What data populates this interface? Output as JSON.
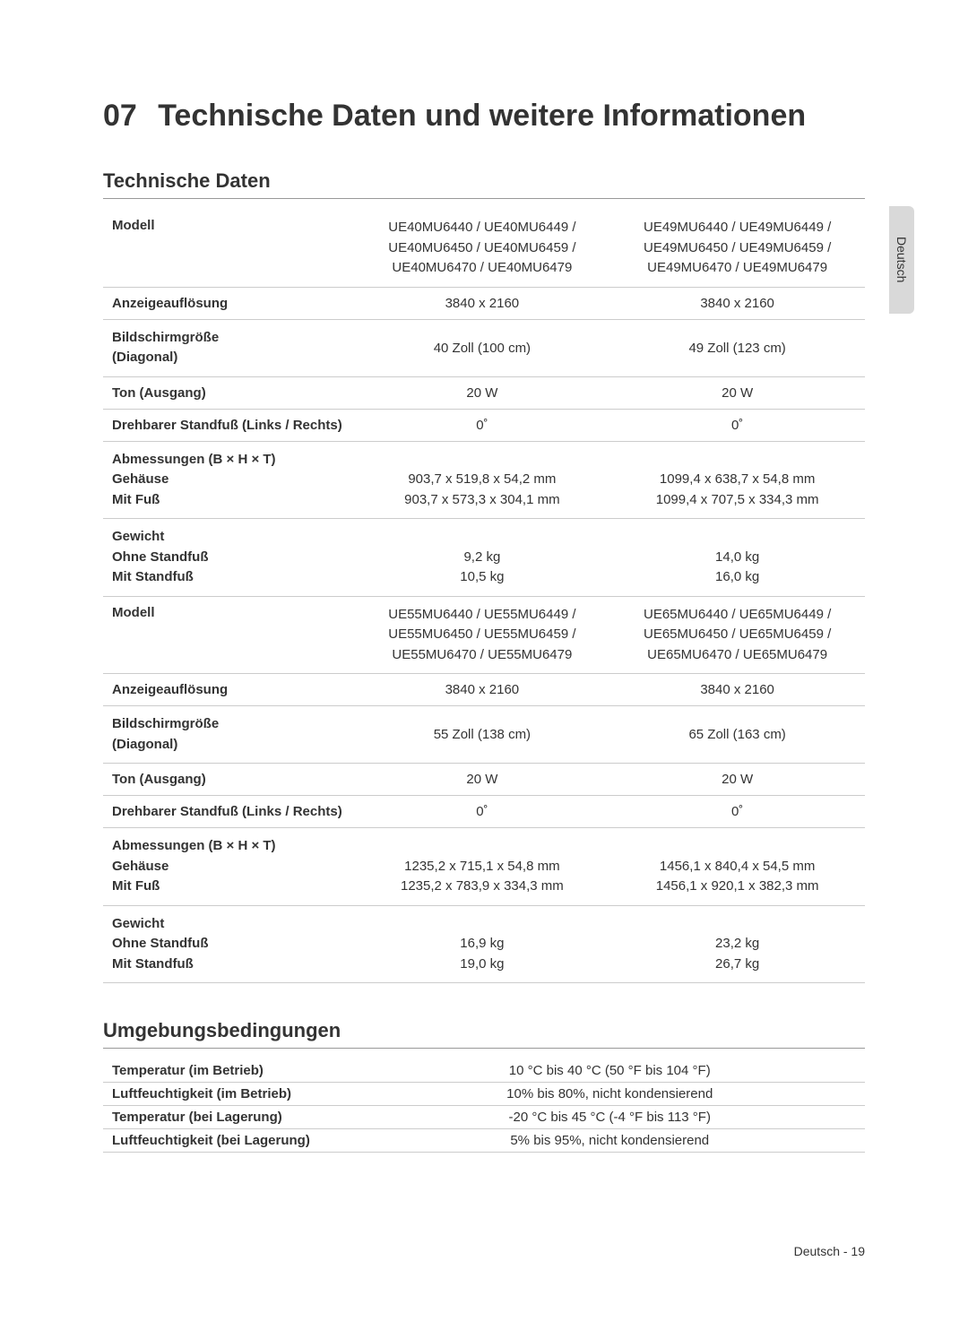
{
  "page": {
    "section_number": "07",
    "main_title": "Technische Daten und weitere Informationen",
    "side_tab": "Deutsch",
    "footer": "Deutsch - 19"
  },
  "tech_specs": {
    "title": "Technische Daten",
    "labels": {
      "model": "Modell",
      "resolution": "Anzeigeauflösung",
      "screen_size_line1": "Bildschirmgröße",
      "screen_size_line2": "(Diagonal)",
      "sound": "Ton (Ausgang)",
      "swivel": "Drehbarer Standfuß (Links / Rechts)",
      "dims_header": "Abmessungen (B × H × T)",
      "dims_body": "Gehäuse",
      "dims_foot": "Mit Fuß",
      "weight_header": "Gewicht",
      "weight_nostand": "Ohne Standfuß",
      "weight_stand": "Mit Standfuß"
    },
    "models1": {
      "colA_line1": "UE40MU6440 / UE40MU6449 /",
      "colA_line2": "UE40MU6450 / UE40MU6459 /",
      "colA_line3": "UE40MU6470 / UE40MU6479",
      "colB_line1": "UE49MU6440 / UE49MU6449 /",
      "colB_line2": "UE49MU6450 / UE49MU6459 /",
      "colB_line3": "UE49MU6470 / UE49MU6479",
      "resA": "3840 x 2160",
      "resB": "3840 x 2160",
      "sizeA": "40 Zoll (100 cm)",
      "sizeB": "49 Zoll (123 cm)",
      "soundA": "20 W",
      "soundB": "20 W",
      "swivelA": "0˚",
      "swivelB": "0˚",
      "dimsBodyA": "903,7 x 519,8 x 54,2 mm",
      "dimsBodyB": "1099,4 x 638,7 x 54,8 mm",
      "dimsFootA": "903,7 x 573,3 x 304,1 mm",
      "dimsFootB": "1099,4 x 707,5 x 334,3 mm",
      "weightNoA": "9,2 kg",
      "weightNoB": "14,0 kg",
      "weightStA": "10,5 kg",
      "weightStB": "16,0 kg"
    },
    "models2": {
      "colA_line1": "UE55MU6440 / UE55MU6449 /",
      "colA_line2": "UE55MU6450 / UE55MU6459 /",
      "colA_line3": "UE55MU6470 / UE55MU6479",
      "colB_line1": "UE65MU6440 / UE65MU6449 /",
      "colB_line2": "UE65MU6450 / UE65MU6459 /",
      "colB_line3": "UE65MU6470 / UE65MU6479",
      "resA": "3840 x 2160",
      "resB": "3840 x 2160",
      "sizeA": "55 Zoll (138 cm)",
      "sizeB": "65 Zoll (163 cm)",
      "soundA": "20 W",
      "soundB": "20 W",
      "swivelA": "0˚",
      "swivelB": "0˚",
      "dimsBodyA": "1235,2 x 715,1 x 54,8 mm",
      "dimsBodyB": "1456,1 x 840,4 x 54,5 mm",
      "dimsFootA": "1235,2 x 783,9 x 334,3 mm",
      "dimsFootB": "1456,1 x 920,1 x 382,3 mm",
      "weightNoA": "16,9 kg",
      "weightNoB": "23,2 kg",
      "weightStA": "19,0 kg",
      "weightStB": "26,7 kg"
    }
  },
  "env": {
    "title": "Umgebungsbedingungen",
    "rows": {
      "op_temp_label": "Temperatur (im Betrieb)",
      "op_temp_val": "10 °C bis 40 °C (50 °F bis 104 °F)",
      "op_hum_label": "Luftfeuchtigkeit (im Betrieb)",
      "op_hum_val": "10% bis 80%, nicht kondensierend",
      "st_temp_label": "Temperatur (bei Lagerung)",
      "st_temp_val": "-20 °C bis 45 °C (-4 °F bis 113 °F)",
      "st_hum_label": "Luftfeuchtigkeit (bei Lagerung)",
      "st_hum_val": "5% bis 95%, nicht kondensierend"
    }
  }
}
